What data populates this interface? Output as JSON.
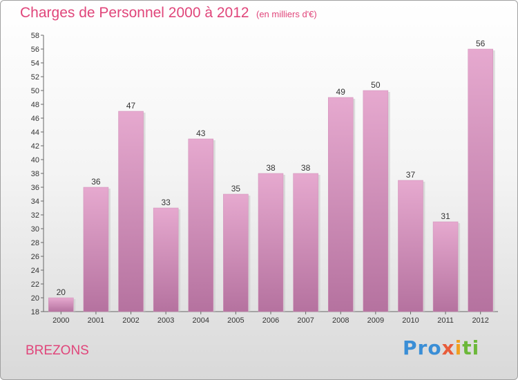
{
  "header": {
    "title": "Charges de Personnel 2000 à 2012",
    "subtitle": "(en milliers d'€)"
  },
  "footer": {
    "commune": "BREZONS",
    "logo_parts": [
      "Pro",
      "x",
      "i",
      "ti"
    ]
  },
  "colors": {
    "bar_light": "#e6a9cf",
    "bar_dark": "#b5729f",
    "title": "#e0457a"
  },
  "chart_data": {
    "type": "bar",
    "categories": [
      "2000",
      "2001",
      "2002",
      "2003",
      "2004",
      "2005",
      "2006",
      "2007",
      "2008",
      "2009",
      "2010",
      "2011",
      "2012"
    ],
    "values": [
      20,
      36,
      47,
      33,
      43,
      35,
      38,
      38,
      49,
      50,
      37,
      31,
      56
    ],
    "ylim": [
      18,
      58
    ],
    "ytick_step": 2,
    "grid": false
  }
}
